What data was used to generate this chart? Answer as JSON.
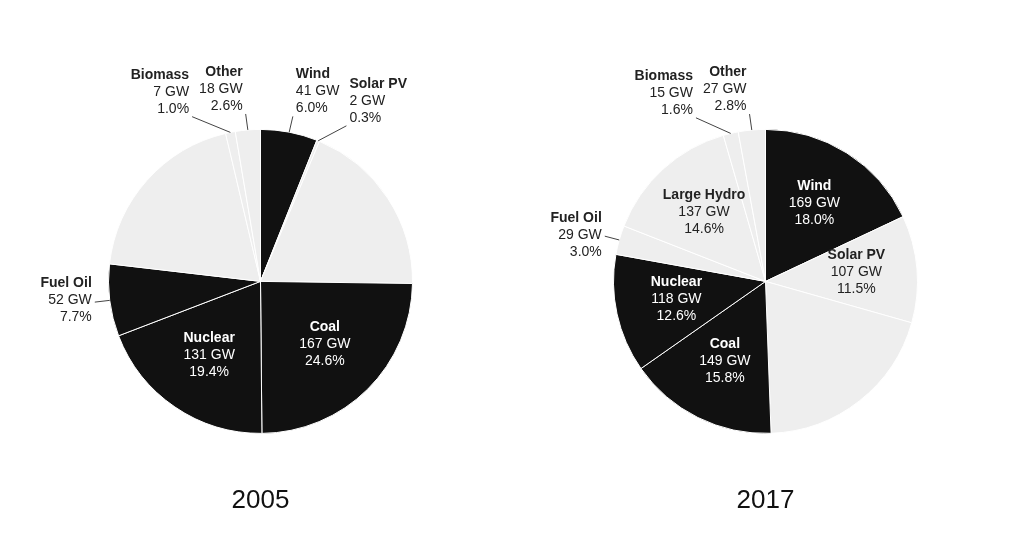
{
  "chart_data": [
    {
      "type": "pie",
      "title": "2005",
      "categories": [
        "Wind",
        "Solar PV",
        null,
        "Coal",
        "Nuclear",
        "Fuel Oil",
        null,
        "Biomass",
        "Other"
      ],
      "values": [
        41,
        2,
        128,
        167,
        131,
        52,
        132,
        7,
        18
      ],
      "colors": [
        "#111111",
        "#eeeeee",
        "#eeeeee",
        "#111111",
        "#111111",
        "#111111",
        "#eeeeee",
        "#eeeeee",
        "#eeeeee"
      ],
      "value_labels": [
        "41 GW\n6.0%",
        "2 GW\n0.3%",
        null,
        "167 GW\n24.6%",
        "131 GW\n19.4%",
        "52 GW\n7.7%",
        null,
        "7 GW\n1.0%",
        "18 GW\n2.6%"
      ],
      "legend": false
    },
    {
      "type": "pie",
      "title": "2017",
      "categories": [
        "Wind",
        "Solar PV",
        null,
        "Coal",
        "Nuclear",
        "Fuel Oil",
        "Large Hydro",
        "Biomass",
        "Other"
      ],
      "values": [
        169,
        107,
        188,
        149,
        118,
        29,
        137,
        15,
        27
      ],
      "colors": [
        "#111111",
        "#eeeeee",
        "#eeeeee",
        "#111111",
        "#111111",
        "#eeeeee",
        "#eeeeee",
        "#eeeeee",
        "#eeeeee"
      ],
      "value_labels": [
        "169 GW\n18.0%",
        "107 GW\n11.5%",
        null,
        "149 GW\n15.8%",
        "118 GW\n12.6%",
        "29 GW\n3.0%",
        "137 GW\n14.6%",
        "15 GW\n1.6%",
        "27 GW\n2.8%"
      ],
      "legend": false
    }
  ]
}
